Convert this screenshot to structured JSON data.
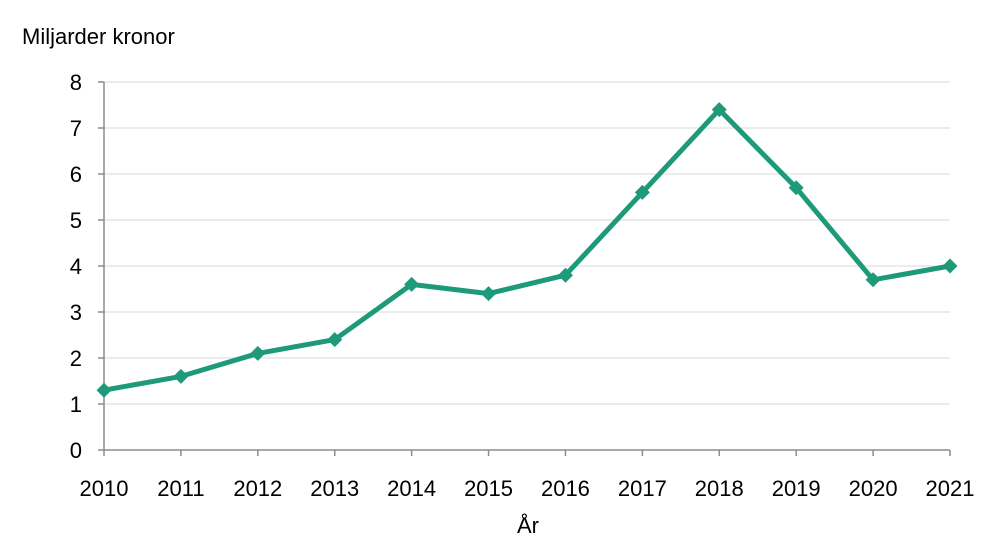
{
  "chart_data": {
    "type": "line",
    "ylabel": "Miljarder kronor",
    "xlabel": "År",
    "x": [
      "2010",
      "2011",
      "2012",
      "2013",
      "2014",
      "2015",
      "2016",
      "2017",
      "2018",
      "2019",
      "2020",
      "2021"
    ],
    "series": [
      {
        "values": [
          1.3,
          1.6,
          2.1,
          2.4,
          3.6,
          3.4,
          3.8,
          5.6,
          7.4,
          5.7,
          3.7,
          4.0
        ]
      }
    ],
    "ylim": [
      0,
      8
    ],
    "yticks": [
      0,
      1,
      2,
      3,
      4,
      5,
      6,
      7,
      8
    ],
    "grid": true,
    "line_color": "#1e9a7a"
  }
}
